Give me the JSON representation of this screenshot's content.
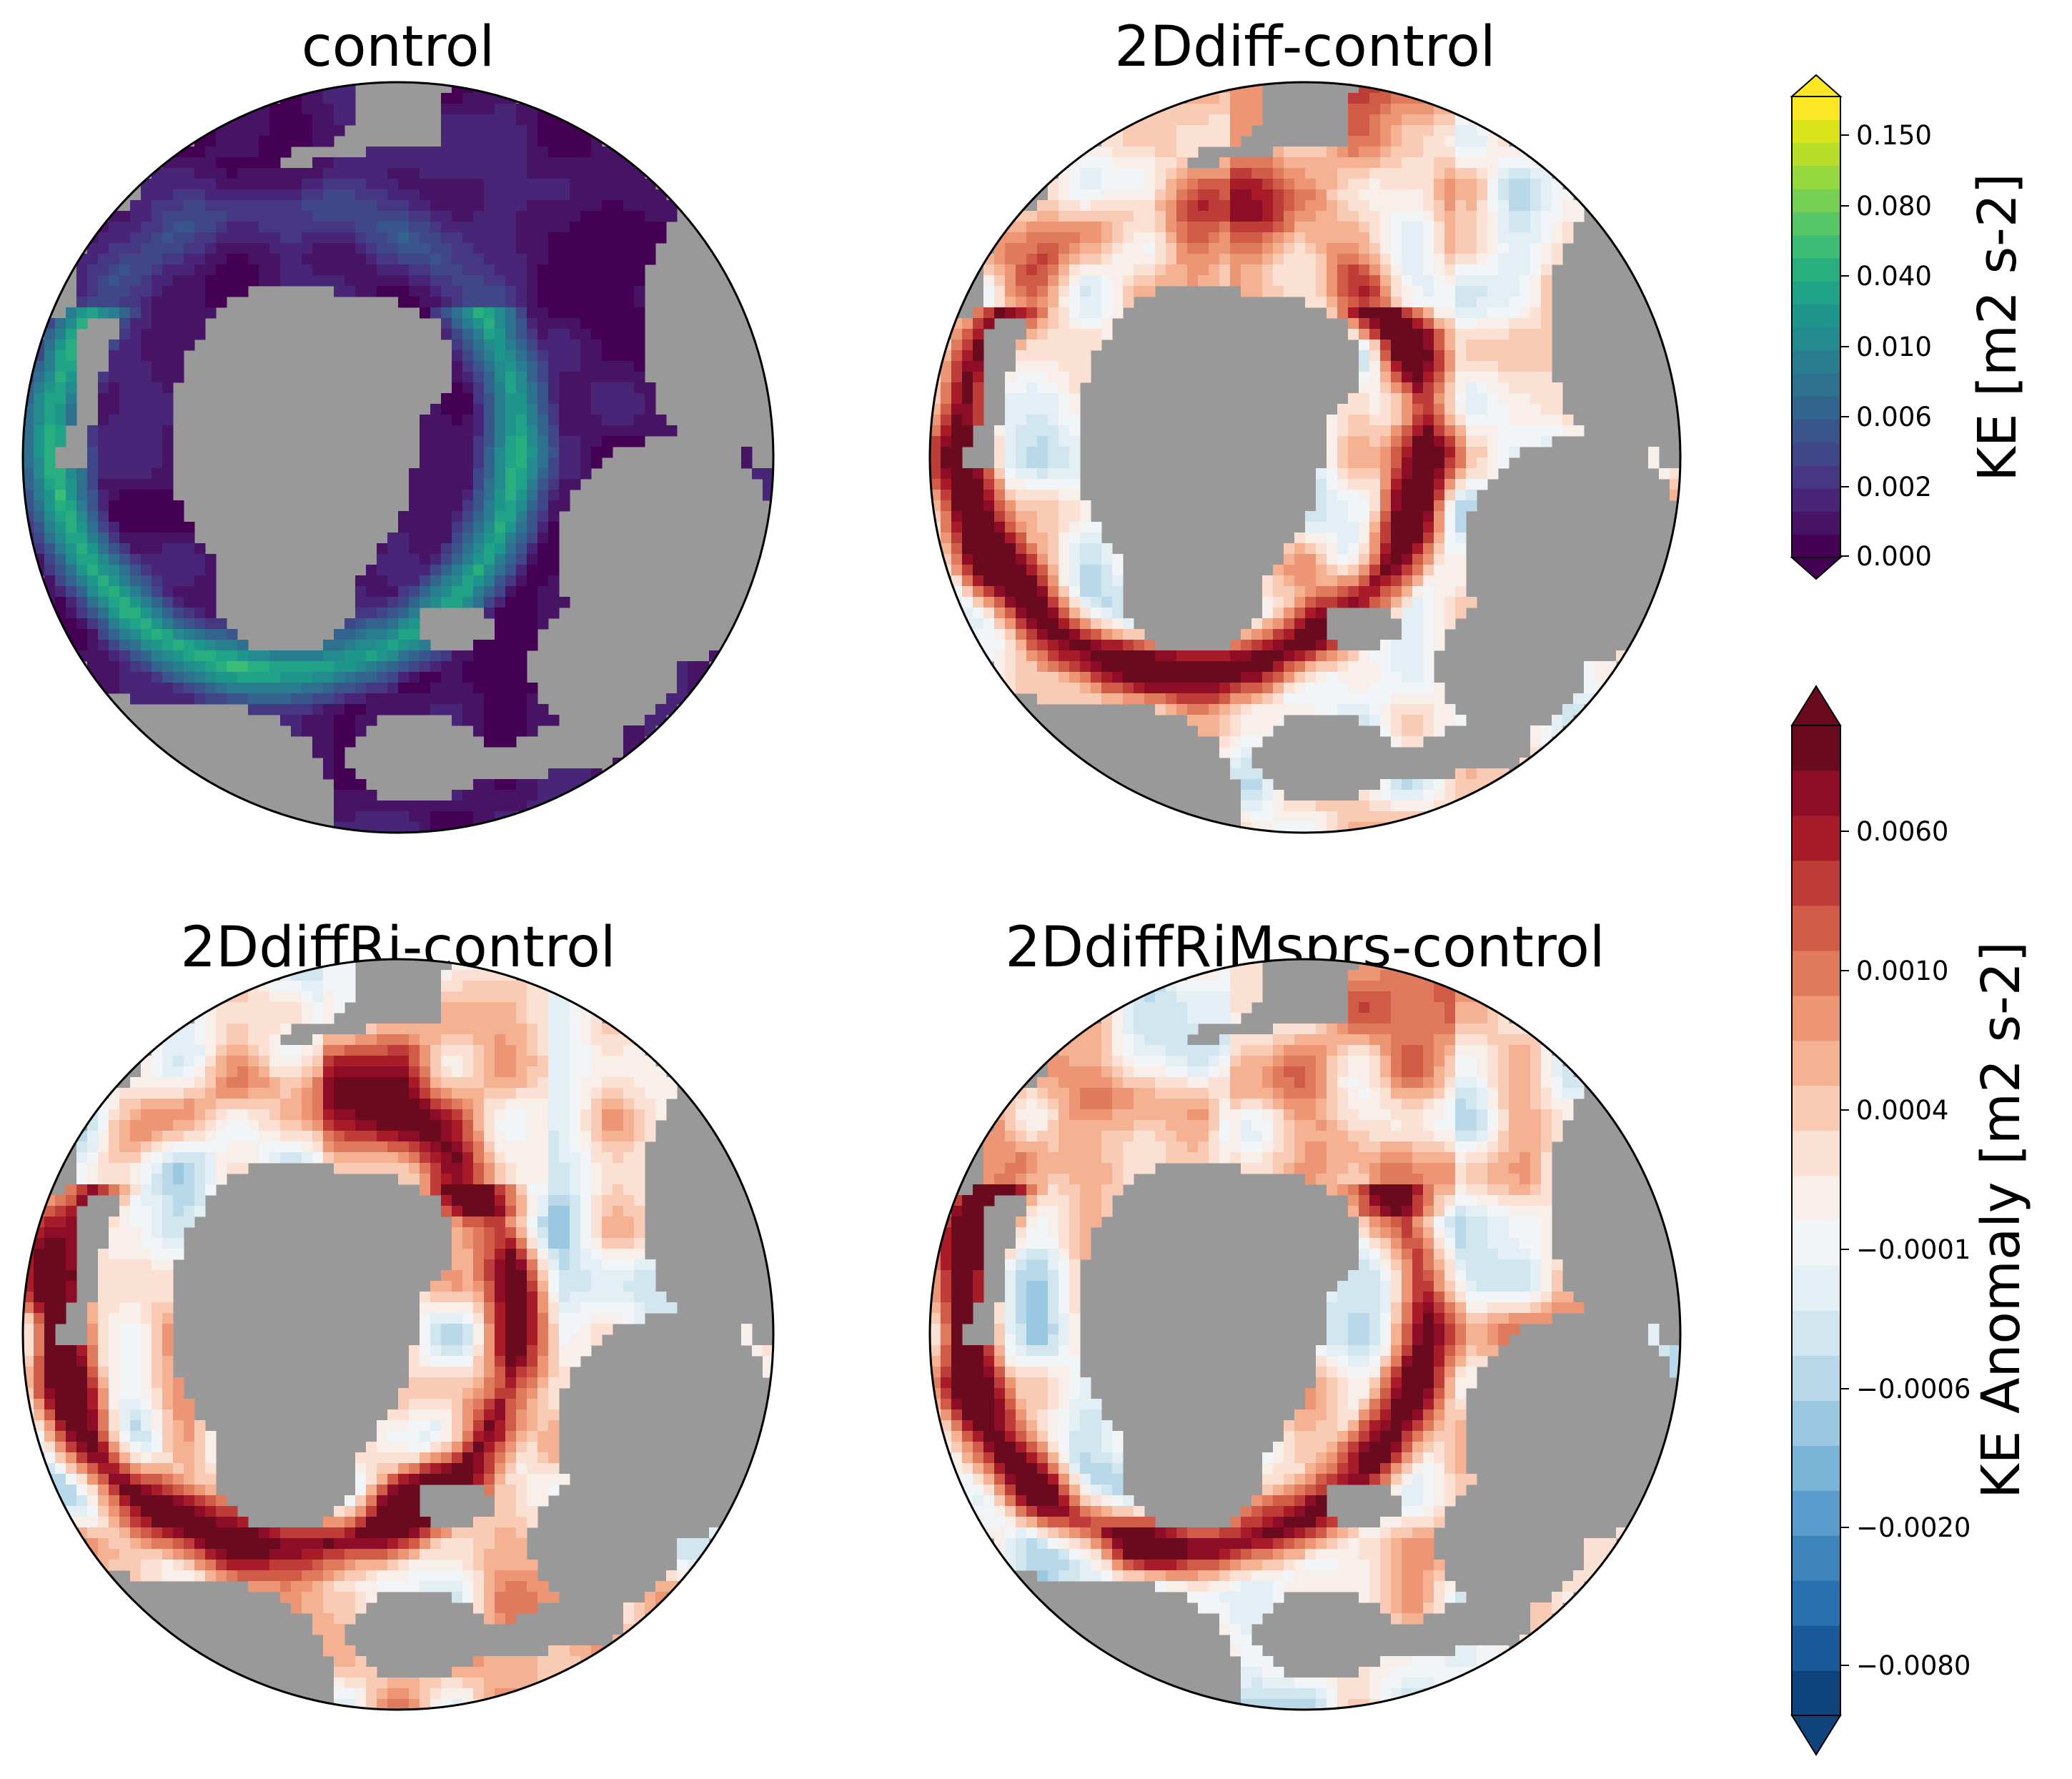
{
  "panels": [
    {
      "title": "control",
      "colormap": "viridis"
    },
    {
      "title": "2Ddiff-control",
      "colormap": "RdBu_r"
    },
    {
      "title": "2DdiffRi-control",
      "colormap": "RdBu_r"
    },
    {
      "title": "2DdiffRiMsprs-control",
      "colormap": "RdBu_r"
    }
  ],
  "colorbar_ke": {
    "label": "KE [m2 s-2]",
    "ticks": [
      "0.000",
      "0.002",
      "0.006",
      "0.010",
      "0.040",
      "0.080",
      "0.150"
    ],
    "colors": [
      "#440154",
      "#471365",
      "#482576",
      "#453781",
      "#3f4788",
      "#39558c",
      "#32648e",
      "#2d718e",
      "#287d8e",
      "#238a8d",
      "#1f968b",
      "#20a386",
      "#29af7f",
      "#3cbc75",
      "#56c667",
      "#75d054",
      "#95d840",
      "#b8de29",
      "#dae319",
      "#fde725"
    ],
    "extend": "both"
  },
  "colorbar_anomaly": {
    "label": "KE Anomaly [m2 s-2]",
    "ticks": [
      "−0.0080",
      "−0.0020",
      "−0.0006",
      "−0.0001",
      "0.0004",
      "0.0010",
      "0.0060"
    ],
    "colors": [
      "#0f437b",
      "#1b5a9a",
      "#2a71b2",
      "#3d84bd",
      "#5a9ccb",
      "#7ab4d6",
      "#9ac8e0",
      "#b9d9ea",
      "#d2e6f0",
      "#e4eef5",
      "#f2f5f7",
      "#f9efea",
      "#fbe1d3",
      "#f9cbb4",
      "#f4b293",
      "#ec9675",
      "#e07a5c",
      "#d05c48",
      "#bf3d38",
      "#a81c2a",
      "#8c0d25",
      "#6a0a1f"
    ],
    "extend": "both"
  },
  "background": {
    "land_color": "#999999"
  }
}
